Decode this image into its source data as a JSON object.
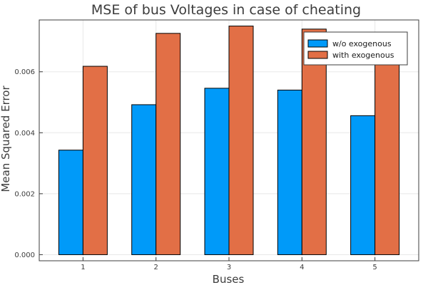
{
  "chart_data": {
    "type": "bar",
    "title": "MSE of bus Voltages in case of cheating",
    "xlabel": "Buses",
    "ylabel": "Mean Squared Error",
    "categories": [
      "1",
      "2",
      "3",
      "4",
      "5"
    ],
    "series": [
      {
        "name": "w/o exogenous",
        "color": "#009af9",
        "values": [
          0.00343,
          0.00492,
          0.00546,
          0.0054,
          0.00456
        ]
      },
      {
        "name": "with exogenous",
        "color": "#e26f46",
        "values": [
          0.00618,
          0.00726,
          0.0075,
          0.0074,
          0.0068
        ]
      }
    ],
    "yticks": [
      "0.000",
      "0.002",
      "0.004",
      "0.006"
    ],
    "ylim": [
      -0.0002,
      0.0077
    ],
    "grid": true,
    "legend_position": "top-right"
  }
}
